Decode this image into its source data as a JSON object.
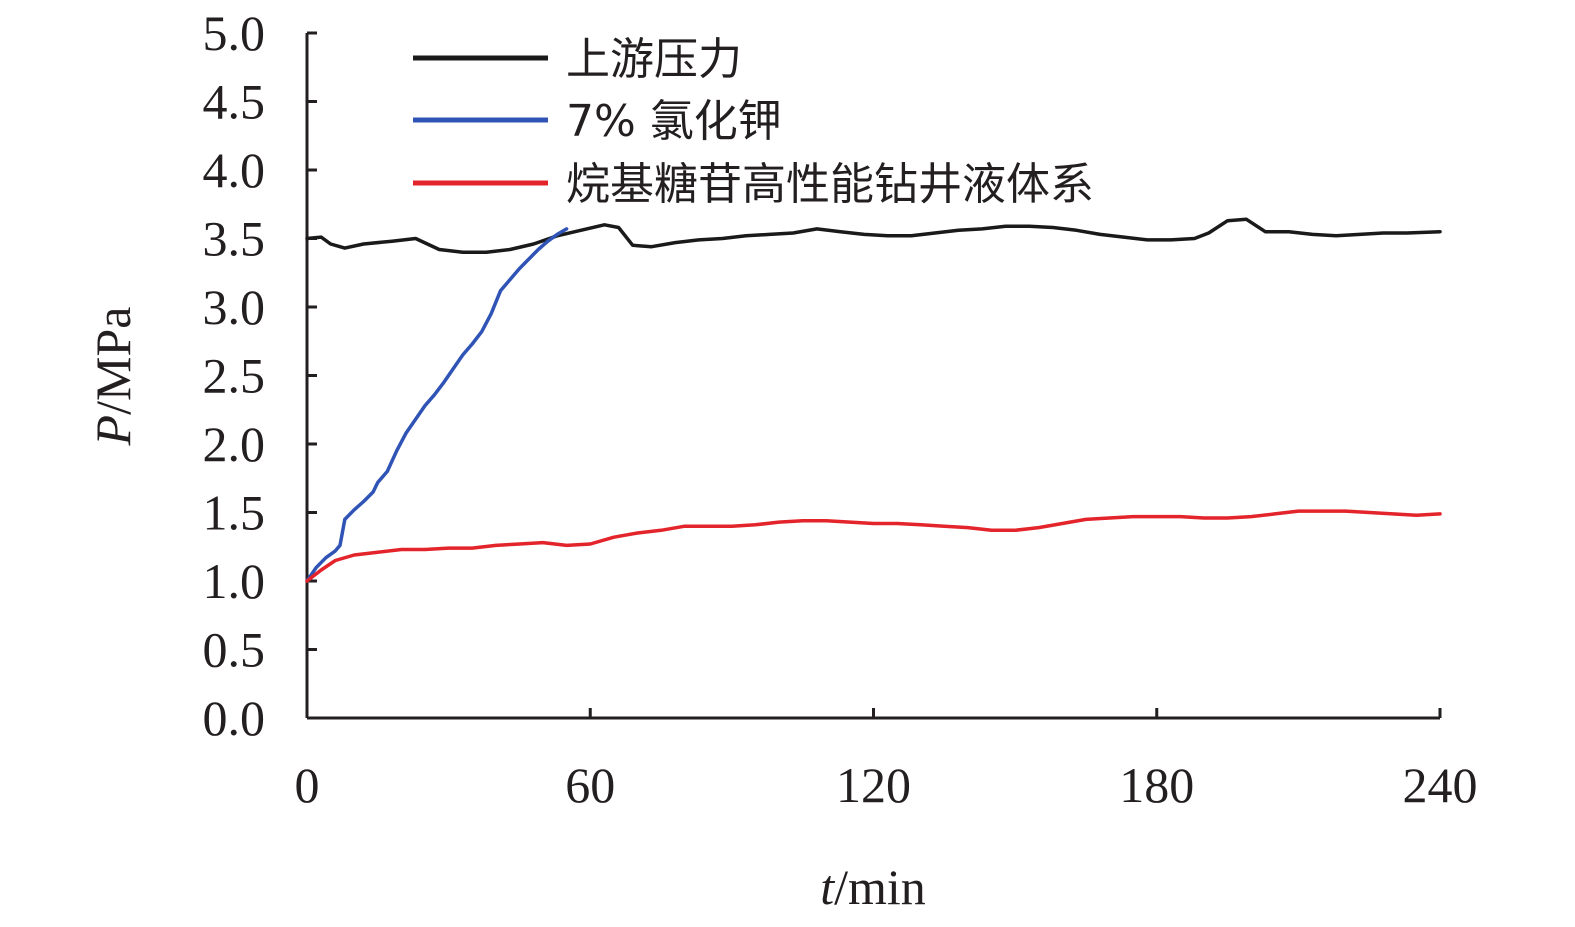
{
  "chart_data": {
    "type": "line",
    "xlabel_var": "t",
    "xlabel_unit": "/min",
    "ylabel_var": "P",
    "ylabel_unit": "/MPa",
    "xlim": [
      0,
      240
    ],
    "ylim": [
      0,
      5.0
    ],
    "x_ticks": [
      0,
      60,
      120,
      180,
      240
    ],
    "y_ticks": [
      "0.0",
      "0.5",
      "1.0",
      "1.5",
      "2.0",
      "2.5",
      "3.0",
      "3.5",
      "4.0",
      "4.5",
      "5.0"
    ],
    "grid": false,
    "legend_position": "top-left",
    "series": [
      {
        "name": "上游压力",
        "color": "#1a1a1a",
        "x": [
          0,
          3,
          5,
          8,
          12,
          18,
          23,
          28,
          33,
          38,
          43,
          48,
          53,
          58,
          63,
          66,
          69,
          73,
          78,
          83,
          88,
          93,
          98,
          103,
          108,
          113,
          118,
          123,
          128,
          133,
          138,
          143,
          148,
          153,
          158,
          163,
          168,
          173,
          178,
          183,
          188,
          191,
          195,
          199,
          203,
          208,
          213,
          218,
          223,
          228,
          233,
          240
        ],
        "y": [
          3.5,
          3.51,
          3.46,
          3.43,
          3.46,
          3.48,
          3.5,
          3.42,
          3.4,
          3.4,
          3.42,
          3.46,
          3.52,
          3.56,
          3.6,
          3.58,
          3.45,
          3.44,
          3.47,
          3.49,
          3.5,
          3.52,
          3.53,
          3.54,
          3.57,
          3.55,
          3.53,
          3.52,
          3.52,
          3.54,
          3.56,
          3.57,
          3.59,
          3.59,
          3.58,
          3.56,
          3.53,
          3.51,
          3.49,
          3.49,
          3.5,
          3.54,
          3.63,
          3.64,
          3.55,
          3.55,
          3.53,
          3.52,
          3.53,
          3.54,
          3.54,
          3.55
        ]
      },
      {
        "name": "7% 氯化钾",
        "color": "#2f54b5",
        "x": [
          0,
          2,
          4,
          6,
          7,
          8,
          10,
          12,
          14,
          15,
          17,
          19,
          21,
          23,
          25,
          27,
          29,
          31,
          33,
          35,
          37,
          39,
          41,
          43,
          45,
          47,
          49,
          51,
          53,
          55
        ],
        "y": [
          1.0,
          1.1,
          1.17,
          1.22,
          1.26,
          1.45,
          1.52,
          1.58,
          1.65,
          1.72,
          1.8,
          1.95,
          2.08,
          2.18,
          2.28,
          2.36,
          2.45,
          2.55,
          2.65,
          2.73,
          2.82,
          2.95,
          3.12,
          3.2,
          3.28,
          3.35,
          3.42,
          3.48,
          3.53,
          3.57
        ]
      },
      {
        "name": "烷基糖苷高性能钻井液体系",
        "color": "#e3242b",
        "x": [
          0,
          3,
          6,
          10,
          15,
          20,
          25,
          30,
          35,
          40,
          45,
          50,
          55,
          60,
          65,
          70,
          75,
          80,
          85,
          90,
          95,
          100,
          105,
          110,
          115,
          120,
          125,
          130,
          135,
          140,
          145,
          150,
          155,
          160,
          165,
          170,
          175,
          180,
          185,
          190,
          195,
          200,
          205,
          210,
          215,
          220,
          225,
          230,
          235,
          240
        ],
        "y": [
          1.0,
          1.08,
          1.15,
          1.19,
          1.21,
          1.23,
          1.23,
          1.24,
          1.24,
          1.26,
          1.27,
          1.28,
          1.26,
          1.27,
          1.32,
          1.35,
          1.37,
          1.4,
          1.4,
          1.4,
          1.41,
          1.43,
          1.44,
          1.44,
          1.43,
          1.42,
          1.42,
          1.41,
          1.4,
          1.39,
          1.37,
          1.37,
          1.39,
          1.42,
          1.45,
          1.46,
          1.47,
          1.47,
          1.47,
          1.46,
          1.46,
          1.47,
          1.49,
          1.51,
          1.51,
          1.51,
          1.5,
          1.49,
          1.48,
          1.49
        ]
      }
    ]
  }
}
